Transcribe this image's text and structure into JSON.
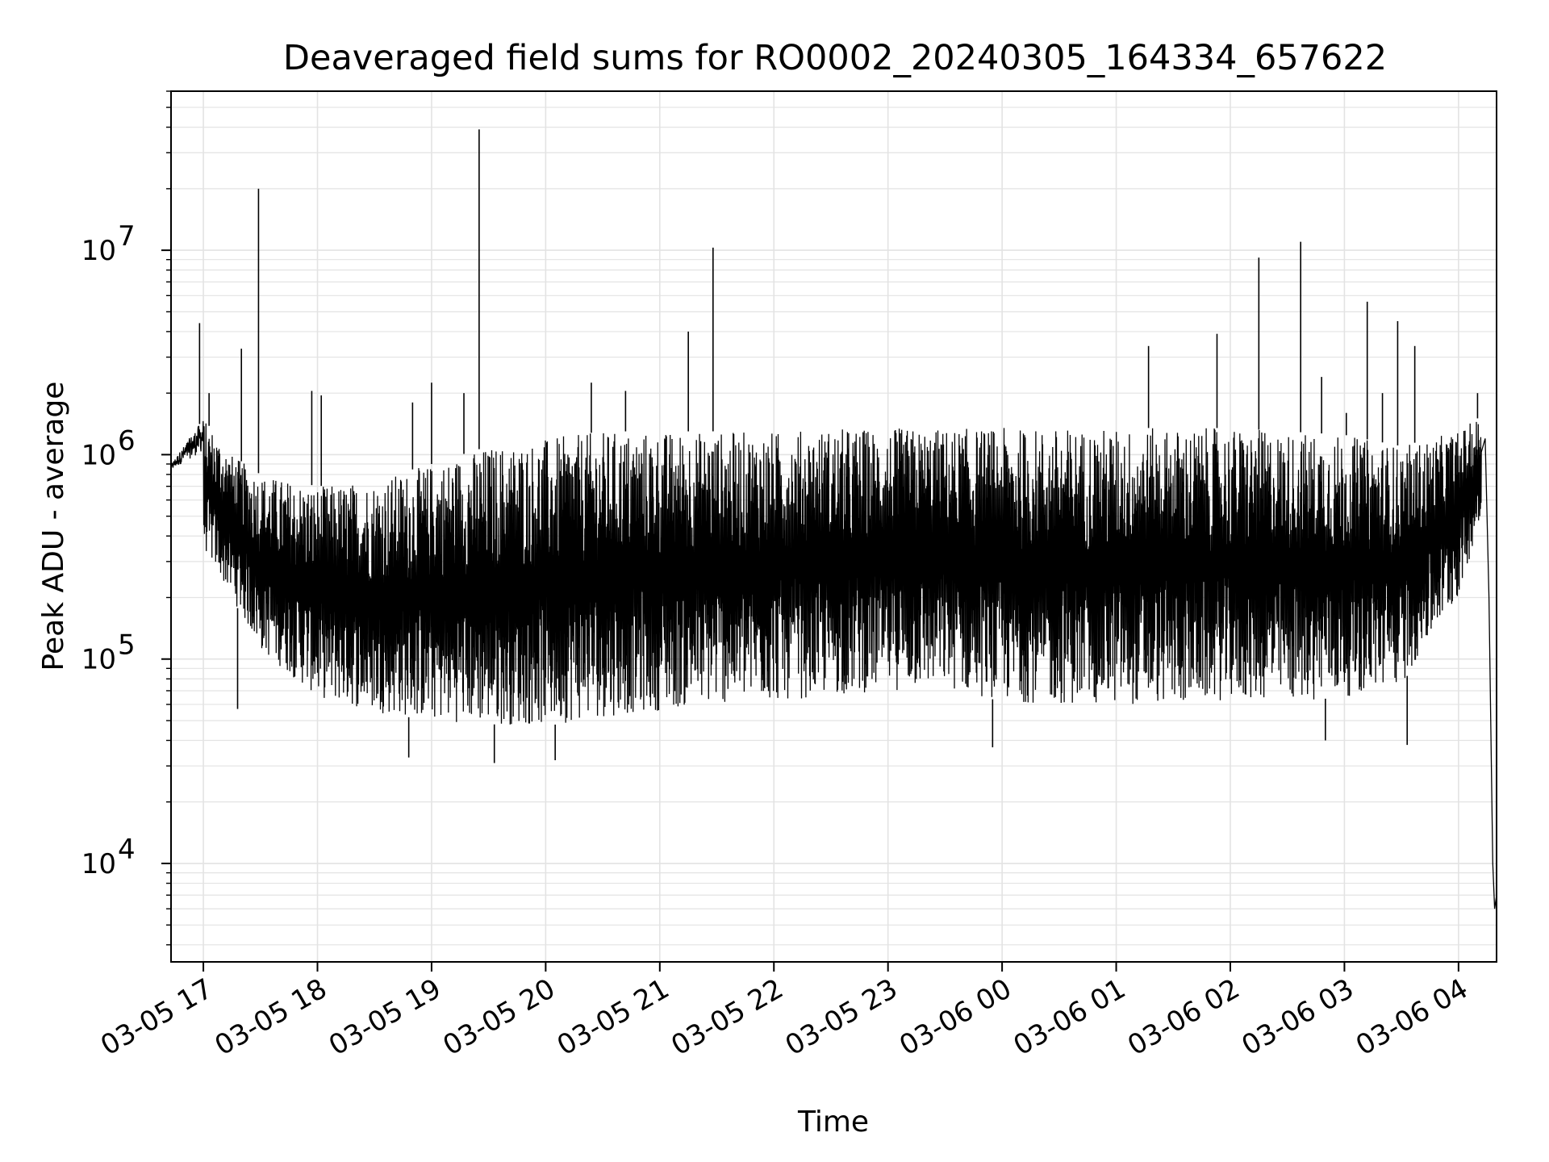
{
  "chart_data": {
    "type": "line",
    "title": "Deaveraged field sums for RO0002_20240305_164334_657622",
    "xlabel": "Time",
    "ylabel": "Peak ADU - average",
    "y_scale": "log",
    "grid": true,
    "line_color": "#000000",
    "grid_color": "#e3e3e3",
    "xlim": [
      "2024-03-05 16:43",
      "2024-03-06 04:20"
    ],
    "ylim": [
      3300,
      60000000
    ],
    "x_ticks": [
      {
        "value": "2024-03-05 17:00",
        "label": "03-05 17"
      },
      {
        "value": "2024-03-05 18:00",
        "label": "03-05 18"
      },
      {
        "value": "2024-03-05 19:00",
        "label": "03-05 19"
      },
      {
        "value": "2024-03-05 20:00",
        "label": "03-05 20"
      },
      {
        "value": "2024-03-05 21:00",
        "label": "03-05 21"
      },
      {
        "value": "2024-03-05 22:00",
        "label": "03-05 22"
      },
      {
        "value": "2024-03-05 23:00",
        "label": "03-05 23"
      },
      {
        "value": "2024-03-06 00:00",
        "label": "03-06 00"
      },
      {
        "value": "2024-03-06 01:00",
        "label": "03-06 01"
      },
      {
        "value": "2024-03-06 02:00",
        "label": "03-06 02"
      },
      {
        "value": "2024-03-06 03:00",
        "label": "03-06 03"
      },
      {
        "value": "2024-03-06 04:00",
        "label": "03-06 04"
      }
    ],
    "y_ticks": [
      {
        "value": 10000,
        "base": "10",
        "exp": "4"
      },
      {
        "value": 100000,
        "base": "10",
        "exp": "5"
      },
      {
        "value": 1000000,
        "base": "10",
        "exp": "6"
      },
      {
        "value": 10000000,
        "base": "10",
        "exp": "7"
      }
    ],
    "series": [
      {
        "x": [
          "2024-03-05 16:43",
          "2024-03-05 16:45",
          "2024-03-05 16:48",
          "2024-03-05 16:52",
          "2024-03-05 16:56",
          "2024-03-05 16:58",
          "2024-03-05 17:00",
          "2024-03-05 17:02",
          "2024-03-05 17:05",
          "2024-03-05 17:08",
          "2024-03-05 17:12",
          "2024-03-05 17:16",
          "2024-03-05 17:20",
          "2024-03-05 17:24",
          "2024-03-05 17:28",
          "2024-03-05 17:32",
          "2024-03-05 17:40",
          "2024-03-05 17:50",
          "2024-03-05 18:00",
          "2024-03-05 18:20",
          "2024-03-05 18:40",
          "2024-03-05 19:00",
          "2024-03-05 19:20",
          "2024-03-05 19:40",
          "2024-03-05 20:00",
          "2024-03-05 20:20",
          "2024-03-05 20:40",
          "2024-03-05 21:00",
          "2024-03-05 21:20",
          "2024-03-05 21:40",
          "2024-03-05 22:00",
          "2024-03-05 22:30",
          "2024-03-05 23:00",
          "2024-03-05 23:30",
          "2024-03-06 00:00",
          "2024-03-06 00:30",
          "2024-03-06 01:00",
          "2024-03-06 01:30",
          "2024-03-06 02:00",
          "2024-03-06 02:30",
          "2024-03-06 03:00",
          "2024-03-06 03:30",
          "2024-03-06 03:50",
          "2024-03-06 04:00",
          "2024-03-06 04:08",
          "2024-03-06 04:14",
          "2024-03-06 04:18",
          "2024-03-06 04:20"
        ],
        "y": [
          700000,
          850000,
          780000,
          900000,
          1100000,
          2000000,
          600000,
          400000,
          320000,
          260000,
          230000,
          200000,
          170000,
          160000,
          150000,
          140000,
          130000,
          120000,
          115000,
          105000,
          100000,
          95000,
          92000,
          90000,
          88000,
          92000,
          100000,
          105000,
          110000,
          115000,
          120000,
          130000,
          140000,
          150000,
          160000,
          170000,
          175000,
          180000,
          190000,
          190000,
          185000,
          180000,
          200000,
          350000,
          1100000,
          1500000,
          200000,
          6000
        ]
      }
    ],
    "envelope": {
      "x": [
        "2024-03-05 16:43",
        "2024-03-05 17:00",
        "2024-03-05 17:15",
        "2024-03-05 17:30",
        "2024-03-05 18:00",
        "2024-03-05 18:30",
        "2024-03-05 19:00",
        "2024-03-05 19:30",
        "2024-03-05 20:00",
        "2024-03-05 20:30",
        "2024-03-05 21:00",
        "2024-03-05 21:30",
        "2024-03-05 22:00",
        "2024-03-05 22:30",
        "2024-03-05 23:00",
        "2024-03-05 23:30",
        "2024-03-06 00:00",
        "2024-03-06 00:30",
        "2024-03-06 01:00",
        "2024-03-06 01:30",
        "2024-03-06 02:00",
        "2024-03-06 02:30",
        "2024-03-06 03:00",
        "2024-03-06 03:30",
        "2024-03-06 04:00",
        "2024-03-06 04:12"
      ],
      "upper": [
        900000,
        1500000,
        1000000,
        800000,
        700000,
        750000,
        900000,
        1100000,
        1200000,
        1300000,
        1300000,
        1300000,
        1300000,
        1350000,
        1350000,
        1350000,
        1350000,
        1350000,
        1350000,
        1350000,
        1350000,
        1300000,
        1250000,
        1100000,
        1300000,
        1550000
      ],
      "lower": [
        700000,
        350000,
        200000,
        110000,
        65000,
        55000,
        50000,
        48000,
        47000,
        52000,
        56000,
        60000,
        62000,
        66000,
        70000,
        72000,
        62000,
        60000,
        60000,
        60000,
        63000,
        62000,
        65000,
        75000,
        200000,
        500000
      ]
    },
    "spikes": [
      {
        "x": "2024-03-05 16:58",
        "y": 4400000
      },
      {
        "x": "2024-03-05 17:03",
        "y": 2000000
      },
      {
        "x": "2024-03-05 17:20",
        "y": 3300000
      },
      {
        "x": "2024-03-05 17:29",
        "y": 20000000
      },
      {
        "x": "2024-03-05 17:57",
        "y": 2050000
      },
      {
        "x": "2024-03-05 18:02",
        "y": 1950000
      },
      {
        "x": "2024-03-05 18:50",
        "y": 1800000
      },
      {
        "x": "2024-03-05 19:00",
        "y": 2250000
      },
      {
        "x": "2024-03-05 19:17",
        "y": 2000000
      },
      {
        "x": "2024-03-05 19:25",
        "y": 39000000
      },
      {
        "x": "2024-03-05 20:24",
        "y": 2250000
      },
      {
        "x": "2024-03-05 20:42",
        "y": 2050000
      },
      {
        "x": "2024-03-05 21:15",
        "y": 4000000
      },
      {
        "x": "2024-03-05 21:28",
        "y": 10300000
      },
      {
        "x": "2024-03-06 01:17",
        "y": 3400000
      },
      {
        "x": "2024-03-06 01:53",
        "y": 3900000
      },
      {
        "x": "2024-03-06 02:15",
        "y": 9200000
      },
      {
        "x": "2024-03-06 02:37",
        "y": 11000000
      },
      {
        "x": "2024-03-06 02:48",
        "y": 2400000
      },
      {
        "x": "2024-03-06 03:01",
        "y": 1600000
      },
      {
        "x": "2024-03-06 03:12",
        "y": 5600000
      },
      {
        "x": "2024-03-06 03:20",
        "y": 2000000
      },
      {
        "x": "2024-03-06 03:28",
        "y": 4500000
      },
      {
        "x": "2024-03-06 03:37",
        "y": 3400000
      },
      {
        "x": "2024-03-06 04:10",
        "y": 2000000
      }
    ],
    "dips": [
      {
        "x": "2024-03-05 17:18",
        "y": 57000
      },
      {
        "x": "2024-03-05 18:48",
        "y": 33000
      },
      {
        "x": "2024-03-05 19:33",
        "y": 31000
      },
      {
        "x": "2024-03-05 20:05",
        "y": 32000
      },
      {
        "x": "2024-03-05 23:55",
        "y": 37000
      },
      {
        "x": "2024-03-06 02:50",
        "y": 40000
      },
      {
        "x": "2024-03-06 03:33",
        "y": 38000
      }
    ]
  }
}
